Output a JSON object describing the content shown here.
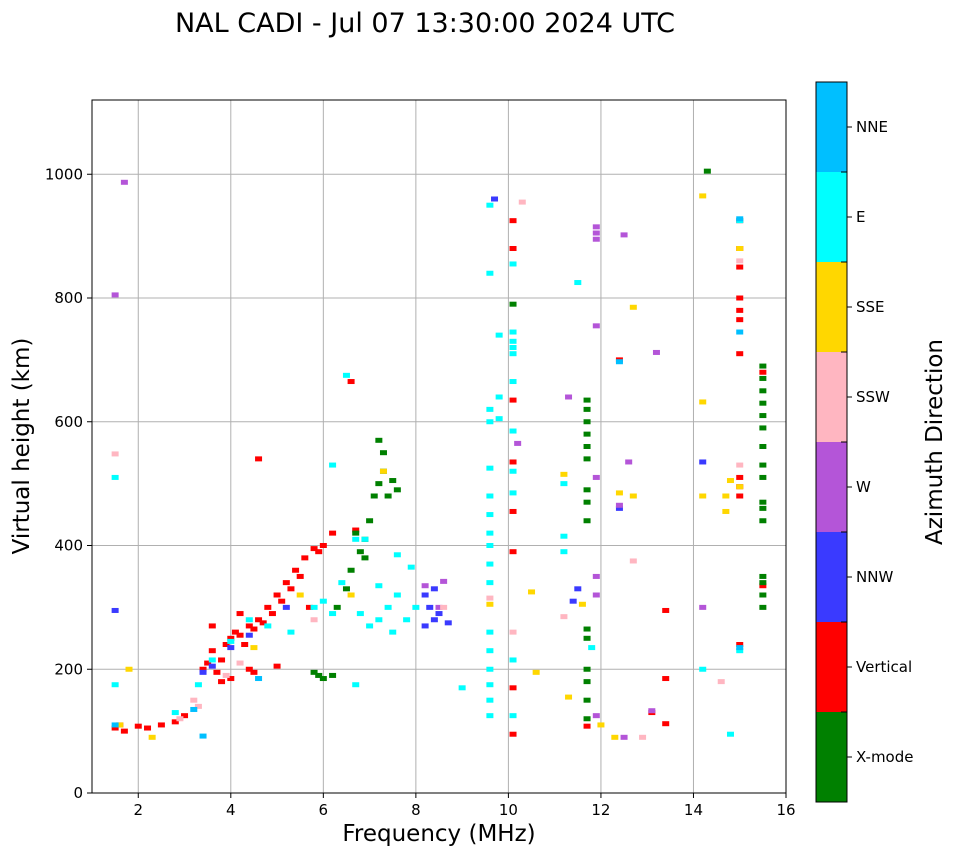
{
  "chart_data": {
    "type": "scatter",
    "title": "NAL CADI - Jul 07 13:30:00 2024 UTC",
    "xlabel": "Frequency (MHz)",
    "ylabel": "Virtual height (km)",
    "xlim": [
      1,
      16
    ],
    "ylim": [
      0,
      1120
    ],
    "xticks": [
      2,
      4,
      6,
      8,
      10,
      12,
      14,
      16
    ],
    "yticks": [
      0,
      200,
      400,
      600,
      800,
      1000
    ],
    "grid": true,
    "colorbar": {
      "label": "Azimuth Direction",
      "categories": [
        {
          "name": "X-mode",
          "color": "#008000"
        },
        {
          "name": "Vertical",
          "color": "#ff0000"
        },
        {
          "name": "NNW",
          "color": "#3a3aff"
        },
        {
          "name": "W",
          "color": "#b455d8"
        },
        {
          "name": "SSW",
          "color": "#ffb6c1"
        },
        {
          "name": "SSE",
          "color": "#ffd700"
        },
        {
          "name": "E",
          "color": "#00ffff"
        },
        {
          "name": "NNE",
          "color": "#00bfff"
        }
      ]
    },
    "series": [
      {
        "name": "Vertical",
        "points": [
          [
            1.5,
            105
          ],
          [
            1.6,
            110
          ],
          [
            1.7,
            100
          ],
          [
            2.0,
            108
          ],
          [
            2.2,
            105
          ],
          [
            2.5,
            110
          ],
          [
            2.8,
            115
          ],
          [
            3.0,
            125
          ],
          [
            3.4,
            200
          ],
          [
            3.5,
            210
          ],
          [
            3.6,
            230
          ],
          [
            3.7,
            195
          ],
          [
            3.8,
            215
          ],
          [
            3.9,
            240
          ],
          [
            4.0,
            250
          ],
          [
            4.0,
            185
          ],
          [
            4.1,
            260
          ],
          [
            4.2,
            255
          ],
          [
            4.3,
            240
          ],
          [
            4.4,
            270
          ],
          [
            4.5,
            265
          ],
          [
            4.5,
            195
          ],
          [
            4.6,
            280
          ],
          [
            4.7,
            275
          ],
          [
            4.8,
            300
          ],
          [
            4.9,
            290
          ],
          [
            5.0,
            320
          ],
          [
            5.0,
            205
          ],
          [
            5.1,
            310
          ],
          [
            5.2,
            340
          ],
          [
            5.3,
            330
          ],
          [
            5.4,
            360
          ],
          [
            5.5,
            350
          ],
          [
            5.6,
            380
          ],
          [
            5.7,
            300
          ],
          [
            5.8,
            395
          ],
          [
            5.9,
            390
          ],
          [
            6.0,
            400
          ],
          [
            6.2,
            420
          ],
          [
            6.7,
            425
          ],
          [
            6.6,
            665
          ],
          [
            4.6,
            540
          ],
          [
            3.6,
            270
          ],
          [
            4.2,
            290
          ],
          [
            4.4,
            200
          ],
          [
            3.8,
            180
          ],
          [
            10.1,
            95
          ],
          [
            10.1,
            170
          ],
          [
            10.1,
            390
          ],
          [
            10.1,
            455
          ],
          [
            10.1,
            535
          ],
          [
            10.1,
            635
          ],
          [
            10.1,
            880
          ],
          [
            10.1,
            925
          ],
          [
            11.7,
            108
          ],
          [
            12.4,
            700
          ],
          [
            13.1,
            130
          ],
          [
            13.4,
            112
          ],
          [
            13.4,
            185
          ],
          [
            13.4,
            295
          ],
          [
            15.0,
            240
          ],
          [
            15.0,
            480
          ],
          [
            15.0,
            495
          ],
          [
            15.0,
            510
          ],
          [
            15.0,
            710
          ],
          [
            15.0,
            765
          ],
          [
            15.0,
            780
          ],
          [
            15.0,
            800
          ],
          [
            15.0,
            850
          ],
          [
            15.0,
            880
          ],
          [
            15.0,
            925
          ],
          [
            15.5,
            335
          ],
          [
            15.5,
            680
          ]
        ]
      },
      {
        "name": "X-mode",
        "points": [
          [
            6.0,
            185
          ],
          [
            6.2,
            190
          ],
          [
            6.3,
            300
          ],
          [
            6.5,
            330
          ],
          [
            6.6,
            360
          ],
          [
            6.8,
            390
          ],
          [
            6.9,
            410
          ],
          [
            7.0,
            440
          ],
          [
            7.1,
            480
          ],
          [
            7.2,
            500
          ],
          [
            7.3,
            520
          ],
          [
            7.4,
            480
          ],
          [
            7.5,
            505
          ],
          [
            7.6,
            490
          ],
          [
            6.7,
            420
          ],
          [
            6.9,
            380
          ],
          [
            7.2,
            570
          ],
          [
            7.3,
            550
          ],
          [
            5.9,
            190
          ],
          [
            5.8,
            195
          ],
          [
            10.1,
            790
          ],
          [
            11.7,
            120
          ],
          [
            11.7,
            150
          ],
          [
            11.7,
            180
          ],
          [
            11.7,
            200
          ],
          [
            11.7,
            250
          ],
          [
            11.7,
            265
          ],
          [
            11.7,
            440
          ],
          [
            11.7,
            470
          ],
          [
            11.7,
            490
          ],
          [
            11.7,
            540
          ],
          [
            11.7,
            560
          ],
          [
            11.7,
            580
          ],
          [
            11.7,
            600
          ],
          [
            11.7,
            620
          ],
          [
            11.7,
            635
          ],
          [
            14.3,
            1005
          ],
          [
            15.5,
            300
          ],
          [
            15.5,
            320
          ],
          [
            15.5,
            340
          ],
          [
            15.5,
            350
          ],
          [
            15.5,
            440
          ],
          [
            15.5,
            460
          ],
          [
            15.5,
            470
          ],
          [
            15.5,
            510
          ],
          [
            15.5,
            530
          ],
          [
            15.5,
            560
          ],
          [
            15.5,
            590
          ],
          [
            15.5,
            610
          ],
          [
            15.5,
            630
          ],
          [
            15.5,
            650
          ],
          [
            15.5,
            670
          ],
          [
            15.5,
            690
          ]
        ]
      },
      {
        "name": "NNW",
        "points": [
          [
            3.4,
            195
          ],
          [
            3.6,
            205
          ],
          [
            4.0,
            235
          ],
          [
            4.4,
            255
          ],
          [
            5.2,
            300
          ],
          [
            8.2,
            270
          ],
          [
            8.3,
            300
          ],
          [
            8.4,
            280
          ],
          [
            8.5,
            290
          ],
          [
            8.2,
            320
          ],
          [
            8.4,
            330
          ],
          [
            8.7,
            275
          ],
          [
            1.5,
            295
          ],
          [
            9.7,
            960
          ],
          [
            11.4,
            310
          ],
          [
            11.5,
            330
          ],
          [
            14.2,
            535
          ],
          [
            12.4,
            460
          ]
        ]
      },
      {
        "name": "W",
        "points": [
          [
            8.2,
            335
          ],
          [
            8.6,
            342
          ],
          [
            8.5,
            300
          ],
          [
            11.9,
            125
          ],
          [
            11.9,
            320
          ],
          [
            11.9,
            350
          ],
          [
            11.9,
            510
          ],
          [
            11.9,
            755
          ],
          [
            11.9,
            895
          ],
          [
            11.9,
            905
          ],
          [
            11.9,
            915
          ],
          [
            12.5,
            90
          ],
          [
            12.4,
            465
          ],
          [
            12.6,
            535
          ],
          [
            12.5,
            902
          ],
          [
            13.1,
            133
          ],
          [
            13.2,
            712
          ],
          [
            14.2,
            300
          ],
          [
            10.2,
            565
          ],
          [
            11.3,
            640
          ],
          [
            1.7,
            987
          ],
          [
            1.5,
            805
          ]
        ]
      },
      {
        "name": "SSW",
        "points": [
          [
            2.9,
            120
          ],
          [
            3.3,
            140
          ],
          [
            3.2,
            150
          ],
          [
            4.2,
            210
          ],
          [
            5.8,
            280
          ],
          [
            8.6,
            300
          ],
          [
            9.6,
            315
          ],
          [
            10.1,
            260
          ],
          [
            10.3,
            955
          ],
          [
            11.2,
            285
          ],
          [
            12.7,
            375
          ],
          [
            12.9,
            90
          ],
          [
            14.6,
            180
          ],
          [
            15.0,
            530
          ],
          [
            15.0,
            860
          ],
          [
            1.5,
            548
          ],
          [
            3.9,
            190
          ]
        ]
      },
      {
        "name": "SSE",
        "points": [
          [
            1.6,
            110
          ],
          [
            2.3,
            90
          ],
          [
            4.5,
            235
          ],
          [
            5.5,
            320
          ],
          [
            6.6,
            320
          ],
          [
            7.3,
            520
          ],
          [
            9.6,
            305
          ],
          [
            10.5,
            325
          ],
          [
            10.6,
            195
          ],
          [
            11.3,
            155
          ],
          [
            11.6,
            305
          ],
          [
            12.0,
            110
          ],
          [
            12.3,
            90
          ],
          [
            12.4,
            485
          ],
          [
            12.7,
            480
          ],
          [
            12.7,
            785
          ],
          [
            14.2,
            480
          ],
          [
            14.2,
            632
          ],
          [
            14.2,
            965
          ],
          [
            14.7,
            455
          ],
          [
            14.7,
            480
          ],
          [
            14.8,
            505
          ],
          [
            15.0,
            495
          ],
          [
            15.0,
            880
          ],
          [
            11.2,
            515
          ],
          [
            1.8,
            200
          ]
        ]
      },
      {
        "name": "E",
        "points": [
          [
            1.5,
            175
          ],
          [
            1.5,
            510
          ],
          [
            2.8,
            130
          ],
          [
            3.3,
            175
          ],
          [
            3.6,
            215
          ],
          [
            4.0,
            245
          ],
          [
            4.4,
            280
          ],
          [
            4.8,
            270
          ],
          [
            5.3,
            260
          ],
          [
            5.8,
            300
          ],
          [
            6.0,
            310
          ],
          [
            6.2,
            290
          ],
          [
            6.4,
            340
          ],
          [
            6.7,
            175
          ],
          [
            6.8,
            290
          ],
          [
            7.0,
            270
          ],
          [
            7.2,
            280
          ],
          [
            7.4,
            300
          ],
          [
            7.5,
            260
          ],
          [
            7.6,
            320
          ],
          [
            7.8,
            280
          ],
          [
            7.9,
            365
          ],
          [
            7.2,
            335
          ],
          [
            7.6,
            385
          ],
          [
            8.0,
            300
          ],
          [
            6.9,
            410
          ],
          [
            6.7,
            410
          ],
          [
            6.2,
            530
          ],
          [
            9.0,
            170
          ],
          [
            9.6,
            125
          ],
          [
            9.6,
            150
          ],
          [
            9.6,
            175
          ],
          [
            9.6,
            200
          ],
          [
            9.6,
            230
          ],
          [
            9.6,
            260
          ],
          [
            9.6,
            340
          ],
          [
            9.6,
            370
          ],
          [
            9.6,
            400
          ],
          [
            9.6,
            420
          ],
          [
            9.6,
            450
          ],
          [
            9.6,
            480
          ],
          [
            9.6,
            525
          ],
          [
            9.6,
            600
          ],
          [
            9.6,
            620
          ],
          [
            9.6,
            840
          ],
          [
            9.6,
            950
          ],
          [
            9.8,
            640
          ],
          [
            9.8,
            740
          ],
          [
            9.8,
            605
          ],
          [
            10.1,
            125
          ],
          [
            10.1,
            215
          ],
          [
            10.1,
            485
          ],
          [
            10.1,
            520
          ],
          [
            10.1,
            585
          ],
          [
            10.1,
            665
          ],
          [
            10.1,
            710
          ],
          [
            10.1,
            720
          ],
          [
            10.1,
            730
          ],
          [
            10.1,
            745
          ],
          [
            10.1,
            855
          ],
          [
            11.2,
            390
          ],
          [
            11.2,
            415
          ],
          [
            11.2,
            500
          ],
          [
            11.5,
            825
          ],
          [
            11.8,
            235
          ],
          [
            14.2,
            200
          ],
          [
            14.8,
            95
          ],
          [
            15.0,
            230
          ],
          [
            15.0,
            925
          ],
          [
            6.5,
            675
          ]
        ]
      },
      {
        "name": "NNE",
        "points": [
          [
            1.5,
            110
          ],
          [
            3.2,
            135
          ],
          [
            3.4,
            92
          ],
          [
            4.6,
            185
          ],
          [
            12.4,
            697
          ],
          [
            15.0,
            235
          ],
          [
            15.0,
            745
          ],
          [
            15.0,
            928
          ]
        ]
      }
    ]
  }
}
